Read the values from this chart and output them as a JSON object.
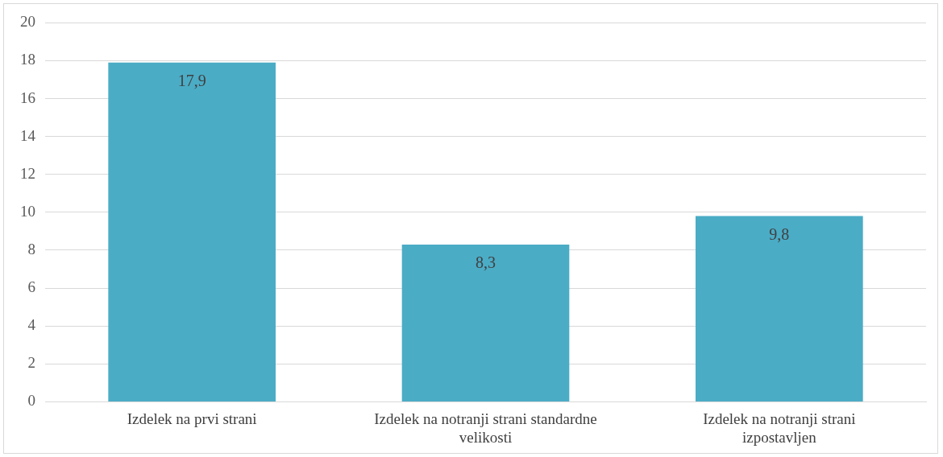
{
  "chart_data": {
    "type": "bar",
    "categories": [
      "Izdelek na prvi strani",
      "Izdelek na notranji strani standardne velikosti",
      "Izdelek na notranji strani izpostavljen"
    ],
    "values": [
      17.9,
      8.3,
      9.8
    ],
    "value_labels": [
      "17,9",
      "8,3",
      "9,8"
    ],
    "color": "#4bacc6",
    "ylim": [
      0,
      20
    ],
    "yticks": [
      0,
      2,
      4,
      6,
      8,
      10,
      12,
      14,
      16,
      18,
      20
    ],
    "grid": "y",
    "legend": false
  }
}
